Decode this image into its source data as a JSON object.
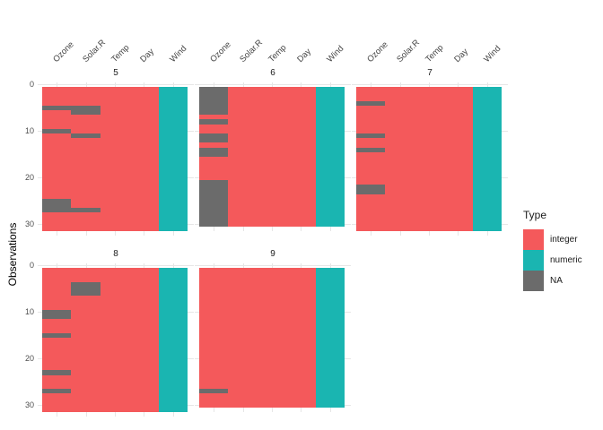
{
  "figure": {
    "ylab": "Observations",
    "legend": {
      "title": "Type",
      "items": [
        {
          "label": "integer",
          "color": "#F4595B"
        },
        {
          "label": "numeric",
          "color": "#1AB5B1"
        },
        {
          "label": "NA",
          "color": "#6B6B6B"
        }
      ]
    }
  },
  "chart_data": {
    "type": "heatmap",
    "subtype": "visdat-missingness-matrix",
    "columns": [
      "Ozone",
      "Solar.R",
      "Temp",
      "Day",
      "Wind"
    ],
    "column_types": {
      "Ozone": "integer",
      "Solar.R": "integer",
      "Temp": "integer",
      "Day": "integer",
      "Wind": "numeric"
    },
    "y_axis": {
      "label": "Observations",
      "ticks": [
        0,
        10,
        20,
        30
      ],
      "reversed": true
    },
    "x_axis": {
      "position": "top",
      "label_angle": 45
    },
    "legend": {
      "title": "Type",
      "entries": [
        "integer",
        "numeric",
        "NA"
      ],
      "position": "right"
    },
    "facets": [
      {
        "label": "5",
        "n_obs": 31,
        "na": {
          "Ozone": [
            [
              5,
              5
            ],
            [
              10,
              10
            ],
            [
              25,
              27
            ]
          ],
          "Solar.R": [
            [
              5,
              6
            ],
            [
              11,
              11
            ],
            [
              27,
              27
            ]
          ]
        }
      },
      {
        "label": "6",
        "n_obs": 30,
        "na": {
          "Ozone": [
            [
              1,
              6
            ],
            [
              8,
              8
            ],
            [
              11,
              12
            ],
            [
              14,
              15
            ],
            [
              21,
              30
            ]
          ]
        }
      },
      {
        "label": "7",
        "n_obs": 31,
        "na": {
          "Ozone": [
            [
              4,
              4
            ],
            [
              11,
              11
            ],
            [
              14,
              14
            ],
            [
              22,
              23
            ]
          ]
        }
      },
      {
        "label": "8",
        "n_obs": 31,
        "na": {
          "Ozone": [
            [
              10,
              11
            ],
            [
              15,
              15
            ],
            [
              23,
              23
            ],
            [
              27,
              27
            ]
          ],
          "Solar.R": [
            [
              4,
              6
            ]
          ]
        }
      },
      {
        "label": "9",
        "n_obs": 30,
        "na": {
          "Ozone": [
            [
              27,
              27
            ]
          ]
        }
      }
    ],
    "colors": {
      "integer": "#F4595B",
      "numeric": "#1AB5B1",
      "NA": "#6B6B6B",
      "gridline": "#E6E6E6",
      "axis_text": "#4D4D4D",
      "strip_text": "#1A1A1A"
    }
  }
}
